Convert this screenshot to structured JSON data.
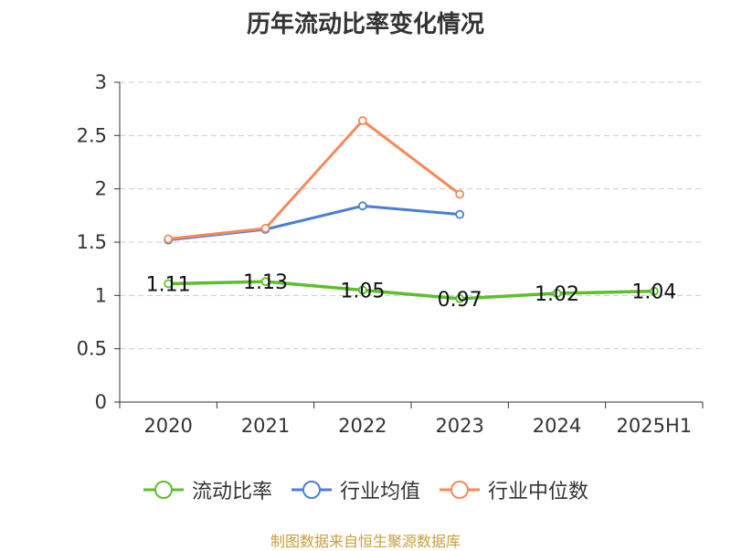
{
  "chart_data": {
    "type": "line",
    "title": "历年流动比率变化情况",
    "categories": [
      "2020",
      "2021",
      "2022",
      "2023",
      "2024",
      "2025H1"
    ],
    "ylim": [
      0,
      3
    ],
    "yticks": [
      "0",
      "0.5",
      "1",
      "1.5",
      "2",
      "2.5",
      "3"
    ],
    "grid": true,
    "legend_position": "bottom",
    "series": [
      {
        "name": "流动比率",
        "color": "#5cbf2a",
        "values": [
          1.11,
          1.13,
          1.05,
          0.97,
          1.02,
          1.04
        ],
        "labels": [
          "1.11",
          "1.13",
          "1.05",
          "0.97",
          "1.02",
          "1.04"
        ]
      },
      {
        "name": "行业均值",
        "color": "#4a7fd6",
        "values": [
          1.52,
          1.62,
          1.84,
          1.76,
          null,
          null
        ]
      },
      {
        "name": "行业中位数",
        "color": "#f5895a",
        "values": [
          1.53,
          1.63,
          2.64,
          1.95,
          null,
          null
        ]
      }
    ]
  },
  "footer": "制图数据来自恒生聚源数据库"
}
